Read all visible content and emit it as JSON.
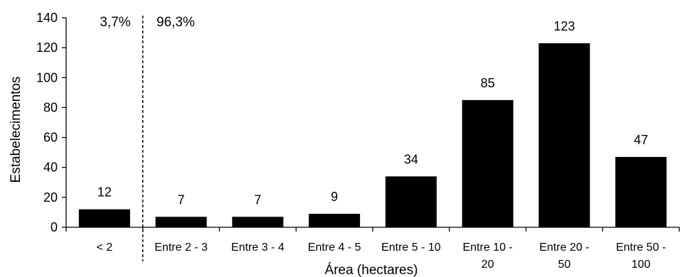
{
  "chart_data": {
    "type": "bar",
    "categories": [
      "< 2",
      "Entre 2 - 3",
      "Entre 3 - 4",
      "Entre 4 - 5",
      "Entre 5 - 10",
      "Entre 10 - 20",
      "Entre 20 - 50",
      "Entre 50 - 100"
    ],
    "category_lines": [
      [
        "< 2"
      ],
      [
        "Entre 2 - 3"
      ],
      [
        "Entre 3 - 4"
      ],
      [
        "Entre 4 - 5"
      ],
      [
        "Entre 5 - 10"
      ],
      [
        "Entre 10 -",
        "20"
      ],
      [
        "Entre 20 -",
        "50"
      ],
      [
        "Entre 50 -",
        "100"
      ]
    ],
    "values": [
      12,
      7,
      7,
      9,
      34,
      85,
      123,
      47
    ],
    "data_labels": [
      "12",
      "7",
      "7",
      "9",
      "34",
      "85",
      "123",
      "47"
    ],
    "xlabel": "Área (hectares)",
    "ylabel": "Estabelecimentos",
    "ylim": [
      0,
      140
    ],
    "yticks": [
      0,
      20,
      40,
      60,
      80,
      100,
      120,
      140
    ],
    "grid": false,
    "bar_color": "#000000",
    "annotations": {
      "left_pct": "3,7%",
      "right_pct": "96,3%"
    },
    "divider_after_category": 0
  }
}
